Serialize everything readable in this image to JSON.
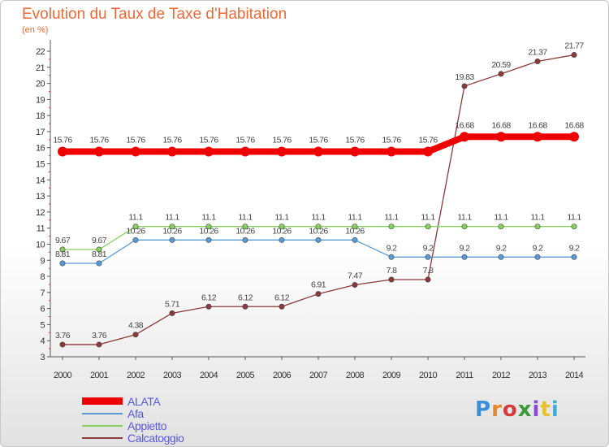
{
  "header": {
    "title": "Evolution du Taux de Taxe d'Habitation",
    "unit": "(en %)"
  },
  "logo": {
    "text": "Proxiti",
    "colors": [
      "#3a8fd8",
      "#e8862a",
      "#d83a3a",
      "#3a9a3a",
      "#8a4ad8",
      "#e8c02a",
      "#3ab0d8"
    ]
  },
  "chart_data": {
    "type": "line",
    "x": [
      "2000",
      "2001",
      "2002",
      "2003",
      "2004",
      "2005",
      "2006",
      "2007",
      "2008",
      "2009",
      "2010",
      "2011",
      "2012",
      "2013",
      "2014"
    ],
    "ylim": [
      3,
      22
    ],
    "yticks": [
      3,
      4,
      5,
      6,
      7,
      8,
      9,
      10,
      11,
      12,
      13,
      14,
      15,
      16,
      17,
      18,
      19,
      20,
      21,
      22
    ],
    "grid": false,
    "legend_position": "bottom-left",
    "series": [
      {
        "name": "ALATA",
        "color": "#ee0000",
        "values": [
          15.76,
          15.76,
          15.76,
          15.76,
          15.76,
          15.76,
          15.76,
          15.76,
          15.76,
          15.76,
          15.76,
          16.68,
          16.68,
          16.68,
          16.68
        ],
        "labels": [
          "15.76",
          "15.76",
          "15.76",
          "15.76",
          "15.76",
          "15.76",
          "15.76",
          "15.76",
          "15.76",
          "15.76",
          "15.76",
          "16.68",
          "16.68",
          "16.68",
          "16.68"
        ]
      },
      {
        "name": "Afa",
        "color": "#5b9bd5",
        "values": [
          8.81,
          8.81,
          10.26,
          10.26,
          10.26,
          10.26,
          10.26,
          10.26,
          10.26,
          9.2,
          9.2,
          9.2,
          9.2,
          9.2,
          9.2
        ],
        "labels": [
          "8.81",
          "8.81",
          "10.26",
          "10.26",
          "10.26",
          "10.26",
          "10.26",
          "10.26",
          "10.26",
          "9.2",
          "9.2",
          "9.2",
          "9.2",
          "9.2",
          "9.2"
        ]
      },
      {
        "name": "Appietto",
        "color": "#88d060",
        "values": [
          9.67,
          9.67,
          11.1,
          11.1,
          11.1,
          11.1,
          11.1,
          11.1,
          11.1,
          11.1,
          11.1,
          11.1,
          11.1,
          11.1,
          11.1
        ],
        "labels": [
          "9.67",
          "9.67",
          "11.1",
          "11.1",
          "11.1",
          "11.1",
          "11.1",
          "11.1",
          "11.1",
          "11.1",
          "11.1",
          "11.1",
          "11.1",
          "11.1",
          "11.1"
        ]
      },
      {
        "name": "Calcatoggio",
        "color": "#8a3a3a",
        "values": [
          3.76,
          3.76,
          4.38,
          5.71,
          6.12,
          6.12,
          6.12,
          6.91,
          7.47,
          7.8,
          7.8,
          19.83,
          20.59,
          21.37,
          21.77
        ],
        "labels": [
          "3.76",
          "3.76",
          "4.38",
          "5.71",
          "6.12",
          "6.12",
          "6.12",
          "6.91",
          "7.47",
          "7.8",
          "7.8",
          "19.83",
          "20.59",
          "21.37",
          "21.77"
        ]
      }
    ]
  }
}
